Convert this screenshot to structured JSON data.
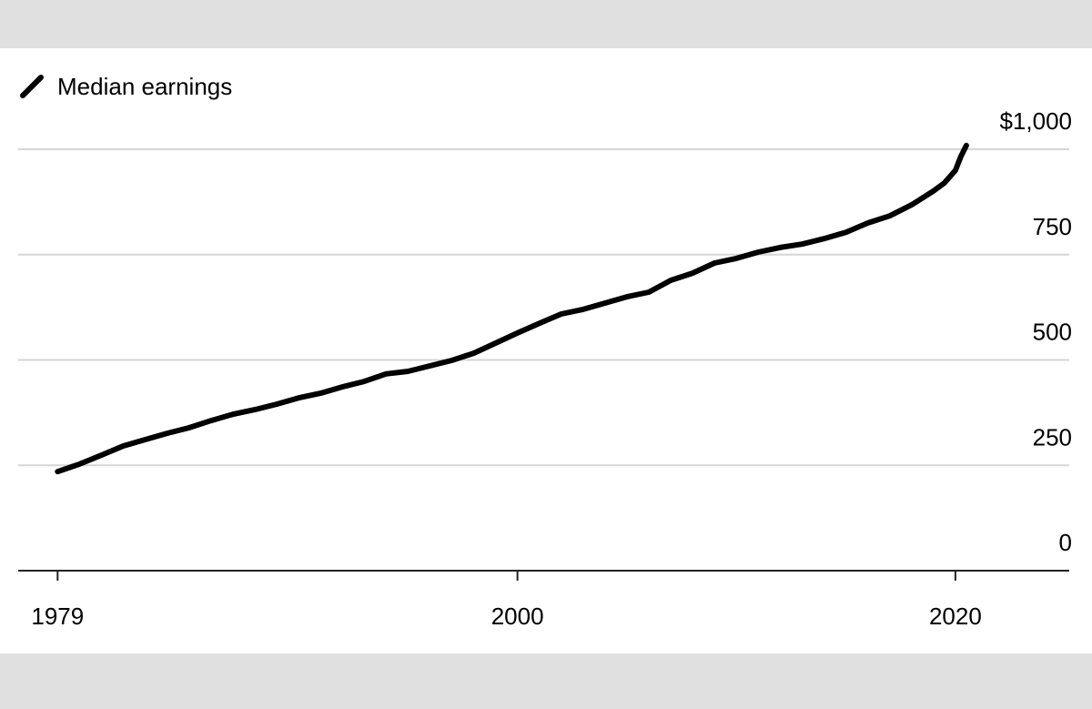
{
  "chart_data": {
    "type": "line",
    "x": [
      1979,
      1980,
      1981,
      1982,
      1983,
      1984,
      1985,
      1986,
      1987,
      1988,
      1989,
      1990,
      1991,
      1992,
      1993,
      1994,
      1995,
      1996,
      1997,
      1998,
      1999,
      2000,
      2001,
      2002,
      2003,
      2004,
      2005,
      2006,
      2007,
      2008,
      2009,
      2010,
      2011,
      2012,
      2013,
      2014,
      2015,
      2016,
      2017,
      2018,
      2019,
      2019.5,
      2020,
      2020.25,
      2020.5
    ],
    "series": [
      {
        "name": "Median earnings",
        "color": "#000000",
        "values": [
          235,
          253,
          274,
          296,
          311,
          326,
          339,
          356,
          371,
          382,
          395,
          410,
          421,
          436,
          449,
          467,
          473,
          486,
          499,
          516,
          540,
          564,
          587,
          609,
          620,
          635,
          650,
          661,
          689,
          706,
          730,
          741,
          756,
          767,
          775,
          788,
          803,
          825,
          842,
          868,
          901,
          920,
          950,
          983,
          1009
        ]
      }
    ],
    "xlim": [
      1977.2,
      2025.2
    ],
    "xticks": [
      1979,
      2000,
      2020
    ],
    "ylim": [
      0,
      1000
    ],
    "yticks": [
      0,
      250,
      500,
      750,
      {
        "value": 1000,
        "label": "$1,000"
      }
    ],
    "grid": true,
    "legend": "top-left"
  }
}
